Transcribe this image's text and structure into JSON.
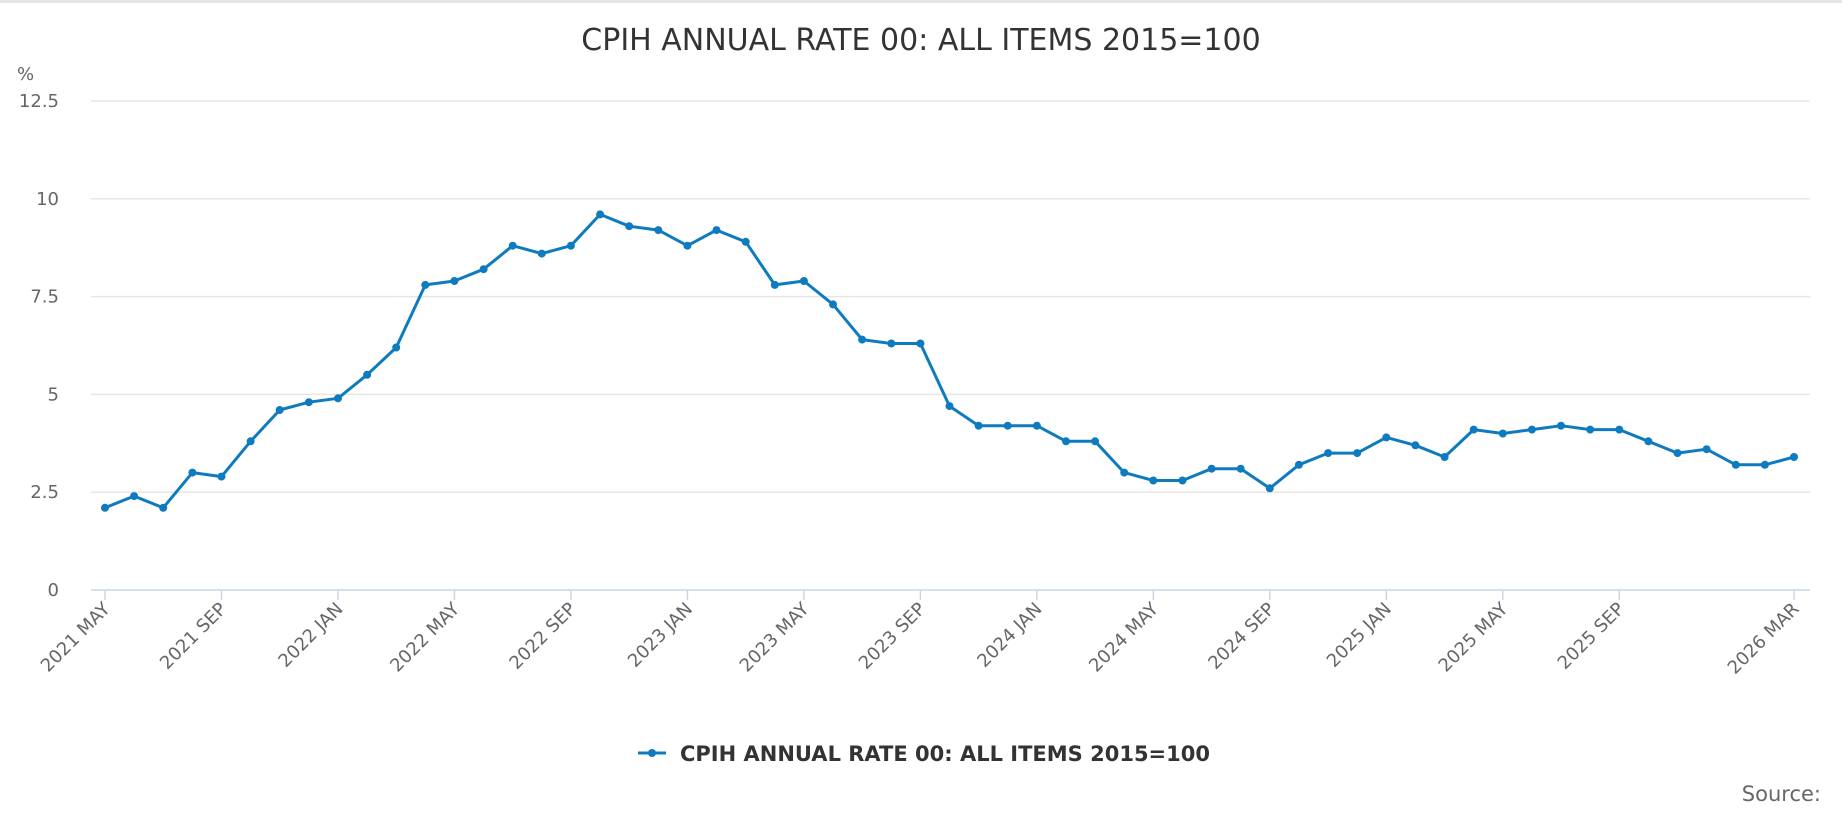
{
  "chart_data": {
    "type": "line",
    "title": "CPIH ANNUAL RATE 00: ALL ITEMS 2015=100",
    "ylabel": "%",
    "xlabel": "",
    "ylim": [
      0,
      12.5
    ],
    "yticks": [
      "0",
      "2.5",
      "5",
      "7.5",
      "10",
      "12.5"
    ],
    "x_ticks": [
      {
        "index": 0,
        "label": "2021 MAY"
      },
      {
        "index": 4,
        "label": "2021 SEP"
      },
      {
        "index": 8,
        "label": "2022 JAN"
      },
      {
        "index": 12,
        "label": "2022 MAY"
      },
      {
        "index": 16,
        "label": "2022 SEP"
      },
      {
        "index": 20,
        "label": "2023 JAN"
      },
      {
        "index": 24,
        "label": "2023 MAY"
      },
      {
        "index": 28,
        "label": "2023 SEP"
      },
      {
        "index": 32,
        "label": "2024 JAN"
      },
      {
        "index": 36,
        "label": "2024 MAY"
      },
      {
        "index": 40,
        "label": "2024 SEP"
      },
      {
        "index": 44,
        "label": "2025 JAN"
      },
      {
        "index": 48,
        "label": "2025 MAY"
      },
      {
        "index": 52,
        "label": "2025 SEP"
      },
      {
        "index": 58,
        "label": "2026 MAR"
      }
    ],
    "grid": true,
    "legend_position": "bottom-center",
    "series": [
      {
        "name": "CPIH ANNUAL RATE 00: ALL ITEMS 2015=100",
        "color": "#0f7bbf",
        "values": [
          2.1,
          2.4,
          2.1,
          3.0,
          2.9,
          3.8,
          4.6,
          4.8,
          4.9,
          5.5,
          6.2,
          7.8,
          7.9,
          8.2,
          8.8,
          8.6,
          8.8,
          9.6,
          9.3,
          9.2,
          8.8,
          9.2,
          8.9,
          7.8,
          7.9,
          7.3,
          6.4,
          6.3,
          6.3,
          4.7,
          4.2,
          4.2,
          4.2,
          3.8,
          3.8,
          3.0,
          2.8,
          2.8,
          3.1,
          3.1,
          2.6,
          3.2,
          3.5,
          3.5,
          3.9,
          3.7,
          3.4,
          4.1,
          4.0,
          4.1,
          4.2,
          4.1,
          4.1,
          3.8,
          3.5,
          3.6,
          3.2,
          3.2,
          3.4
        ]
      }
    ]
  },
  "source_label": "Source:"
}
